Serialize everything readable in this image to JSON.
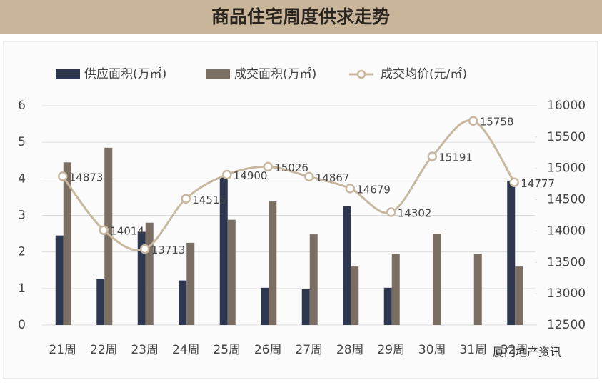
{
  "header": {
    "title": "商品住宅周度供求走势"
  },
  "chart_data": {
    "type": "bar-line",
    "categories": [
      "21周",
      "22周",
      "23周",
      "24周",
      "25周",
      "26周",
      "27周",
      "28周",
      "29周",
      "30周",
      "31周",
      "32周"
    ],
    "series": [
      {
        "name": "供应面积(万㎡)",
        "color": "#2e3750",
        "values": [
          2.45,
          1.27,
          2.55,
          1.22,
          4.05,
          1.02,
          0.98,
          3.25,
          1.02,
          null,
          null,
          3.95
        ]
      },
      {
        "name": "成交面积(万㎡)",
        "color": "#7b6e63",
        "values": [
          4.45,
          4.85,
          2.8,
          2.25,
          2.88,
          3.38,
          2.48,
          1.6,
          1.95,
          2.5,
          1.95,
          1.6
        ]
      },
      {
        "name": "成交均价(元/㎡)",
        "color": "#c8b89f",
        "axis": "y2",
        "values": [
          14873,
          14014,
          13713,
          14515,
          14900,
          15026,
          14867,
          14679,
          14302,
          15191,
          15758,
          14777
        ]
      }
    ],
    "ylim": [
      0,
      6
    ],
    "yticks": [
      0,
      1,
      2,
      3,
      4,
      5,
      6
    ],
    "y2lim": [
      12500,
      16000
    ],
    "y2ticks": [
      12500,
      13000,
      13500,
      14000,
      14500,
      15000,
      15500,
      16000
    ],
    "grid": true,
    "watermark": "厦门地产资讯"
  }
}
